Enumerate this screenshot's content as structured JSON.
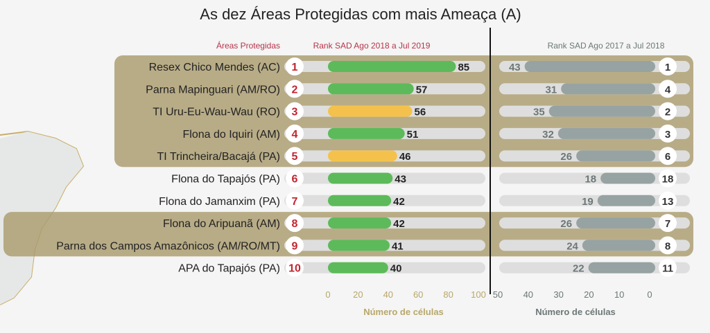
{
  "chart_data": {
    "type": "bar",
    "title": "As dez Áreas Protegidas com mais Ameaça (A)",
    "column_headers": {
      "areas": "Áreas Protegidas",
      "current": "Rank SAD Ago 2018 a Jul 2019",
      "previous": "Rank SAD Ago 2017 a Jul 2018"
    },
    "categories": [
      "Resex Chico Mendes (AC)",
      "Parna Mapinguari (AM/RO)",
      "TI Uru-Eu-Wau-Wau (RO)",
      "Flona do Iquiri (AM)",
      "TI Trincheira/Bacajá (PA)",
      "Flona do Tapajós (PA)",
      "Flona do Jamanxim (PA)",
      "Flona do Aripuanã (AM)",
      "Parna dos Campos Amazônicos (AM/RO/MT)",
      "APA do Tapajós (PA)"
    ],
    "series": [
      {
        "name": "Rank SAD Ago 2018 a Jul 2019",
        "ranks": [
          1,
          2,
          3,
          4,
          5,
          6,
          7,
          8,
          9,
          10
        ],
        "values": [
          85,
          57,
          56,
          51,
          46,
          43,
          42,
          42,
          41,
          40
        ],
        "type": [
          "UC",
          "UC",
          "TI",
          "UC",
          "TI",
          "UC",
          "UC",
          "UC",
          "UC",
          "UC"
        ]
      },
      {
        "name": "Rank SAD Ago 2017 a Jul 2018",
        "ranks": [
          1,
          4,
          2,
          3,
          6,
          18,
          13,
          7,
          8,
          11
        ],
        "values": [
          43,
          31,
          35,
          32,
          26,
          18,
          19,
          26,
          24,
          22
        ]
      }
    ],
    "left_axis": {
      "label": "Número de células",
      "ticks": [
        0,
        20,
        40,
        60,
        80,
        100
      ],
      "range": [
        0,
        100
      ]
    },
    "right_axis": {
      "label": "Número de células",
      "ticks": [
        50,
        40,
        30,
        20,
        10,
        0
      ],
      "range": [
        50,
        0
      ],
      "reversed": true
    },
    "highlighted_rows": [
      1,
      2,
      3,
      4,
      5,
      8,
      9
    ],
    "colors": {
      "uc": "#5dba5a",
      "ti": "#f4c24c",
      "previous": "#97a3a2",
      "track": "#dedede",
      "rank": "#c02630",
      "band": "#a99a6c"
    }
  }
}
